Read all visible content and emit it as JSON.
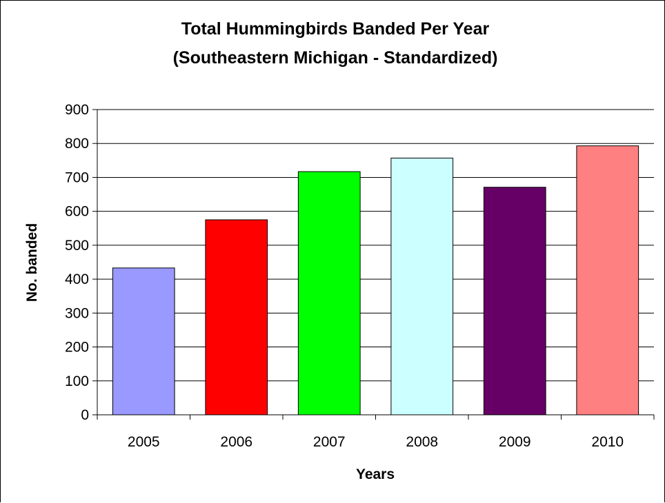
{
  "chart_data": {
    "type": "bar",
    "title": "Total Hummingbirds Banded Per Year",
    "subtitle": "(Southeastern Michigan - Standardized)",
    "xlabel": "Years",
    "ylabel": "No. banded",
    "categories": [
      "2005",
      "2006",
      "2007",
      "2008",
      "2009",
      "2010"
    ],
    "values": [
      433,
      575,
      717,
      757,
      671,
      793
    ],
    "colors": [
      "#9999FF",
      "#FF0000",
      "#00FF00",
      "#CCFFFF",
      "#660066",
      "#FF8080"
    ],
    "ylim": [
      0,
      900
    ],
    "yticks": [
      0,
      100,
      200,
      300,
      400,
      500,
      600,
      700,
      800,
      900
    ],
    "grid": true,
    "legend": "none"
  }
}
